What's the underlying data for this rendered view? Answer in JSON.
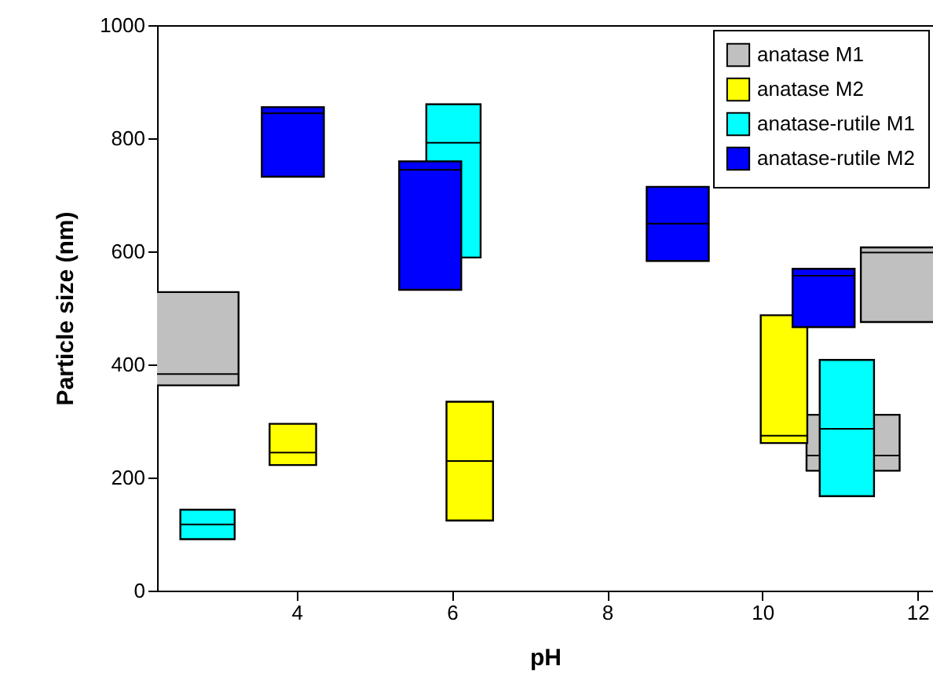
{
  "chart_data": {
    "type": "box",
    "xlabel": "pH",
    "ylabel": "Particle size (nm)",
    "xlim": [
      2.2,
      12.2
    ],
    "xticks": [
      4,
      6,
      8,
      10,
      12
    ],
    "ylim": [
      0,
      1000
    ],
    "yticks": [
      0,
      200,
      400,
      600,
      800,
      1000
    ],
    "grid": false,
    "legend": "top right",
    "series": [
      {
        "name": "anatase M1",
        "color": "#c0c0c0",
        "x": [
          2.65,
          11.17,
          11.87
        ],
        "boxes": [
          {
            "low": 363,
            "q1": 363,
            "median": 383,
            "q3": 528,
            "high": 528
          },
          {
            "low": 212,
            "q1": 212,
            "median": 239,
            "q3": 311,
            "high": 311
          },
          {
            "low": 475,
            "q1": 475,
            "median": 598,
            "q3": 607,
            "high": 607
          }
        ]
      },
      {
        "name": "anatase M2",
        "color": "#ffff00",
        "x": [
          3.95,
          6.23,
          10.28
        ],
        "boxes": [
          {
            "low": 222,
            "q1": 222,
            "median": 244,
            "q3": 295,
            "high": 295
          },
          {
            "low": 124,
            "q1": 124,
            "median": 229,
            "q3": 334,
            "high": 334
          },
          {
            "low": 261,
            "q1": 261,
            "median": 274,
            "q3": 487,
            "high": 487
          }
        ]
      },
      {
        "name": "anatase-rutile M1",
        "color": "#00ffff",
        "x": [
          2.85,
          6.02,
          11.09
        ],
        "boxes": [
          {
            "low": 91,
            "q1": 91,
            "median": 117,
            "q3": 143,
            "high": 143
          },
          {
            "low": 589,
            "q1": 589,
            "median": 792,
            "q3": 860,
            "high": 860
          },
          {
            "low": 167,
            "q1": 167,
            "median": 286,
            "q3": 408,
            "high": 408
          }
        ]
      },
      {
        "name": "anatase-rutile M2",
        "color": "#0000ff",
        "x": [
          3.95,
          5.72,
          8.91,
          10.79
        ],
        "boxes": [
          {
            "low": 732,
            "q1": 732,
            "median": 844,
            "q3": 855,
            "high": 855
          },
          {
            "low": 532,
            "q1": 532,
            "median": 744,
            "q3": 759,
            "high": 759
          },
          {
            "low": 583,
            "q1": 583,
            "median": 649,
            "q3": 714,
            "high": 714
          },
          {
            "low": 466,
            "q1": 466,
            "median": 557,
            "q3": 569,
            "high": 569
          }
        ]
      }
    ]
  }
}
